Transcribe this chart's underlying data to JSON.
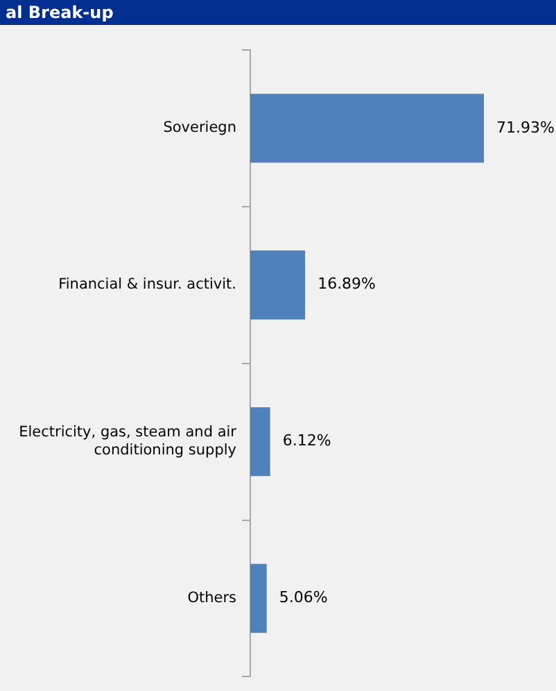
{
  "chart_data": {
    "type": "bar",
    "orientation": "horizontal",
    "title": "al Break-up",
    "categories": [
      "Soveriegn",
      "Financial & insur. activit.",
      "Electricity, gas, steam and air conditioning supply",
      "Others"
    ],
    "values": [
      71.93,
      16.89,
      6.12,
      5.06
    ],
    "value_labels": [
      "71.93%",
      "16.89%",
      "6.12%",
      "5.06%"
    ],
    "color": "#4f81bd"
  }
}
